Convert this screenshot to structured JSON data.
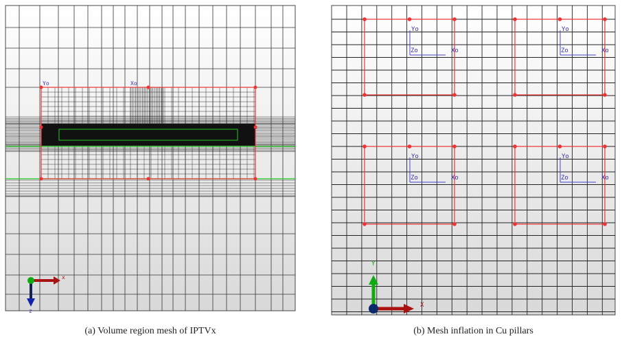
{
  "figures": [
    {
      "caption": "(a) Volume region mesh of IPTVx",
      "triad": {
        "x": "x",
        "z": "z"
      },
      "region_labels": {
        "y": "Yo",
        "x": "Xo"
      }
    },
    {
      "caption": "(b) Mesh inflation in Cu pillars",
      "triad": {
        "y": "Y",
        "x": "X"
      },
      "pillars": [
        {
          "y": "Yo",
          "z": "Zo",
          "x": "Xo"
        },
        {
          "y": "Yo",
          "z": "Zo",
          "x": "Xo"
        },
        {
          "y": "Yo",
          "z": "Zo",
          "x": "Xo"
        },
        {
          "y": "Yo",
          "z": "Zo",
          "x": "Xo"
        }
      ]
    }
  ]
}
